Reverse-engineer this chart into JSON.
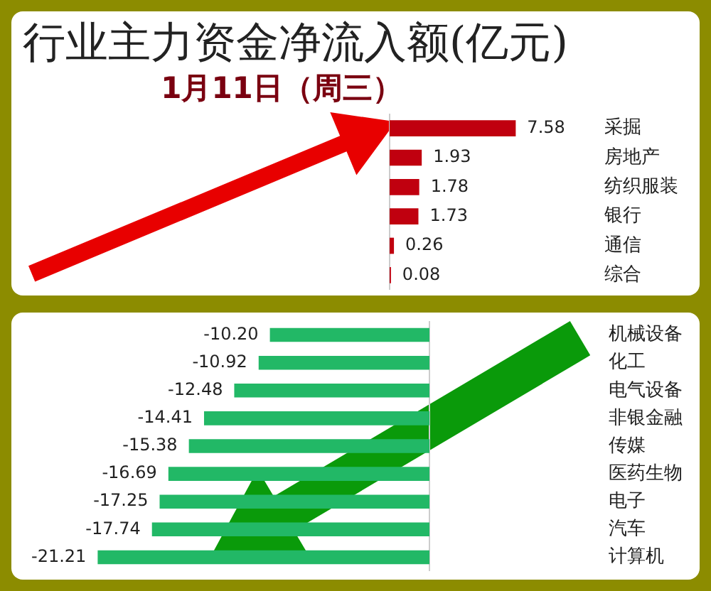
{
  "chart_data": [
    {
      "type": "bar",
      "title": "行业主力资金净流入额(亿元)",
      "subtitle": "1月11日（周三）",
      "orientation": "horizontal",
      "categories": [
        "采掘",
        "房地产",
        "纺织服装",
        "银行",
        "通信",
        "综合"
      ],
      "series": [
        {
          "color": "#c0000f",
          "values": [
            7.58,
            1.93,
            1.78,
            1.73,
            0.26,
            0.08
          ],
          "value_labels": [
            "7.58",
            "1.93",
            "1.78",
            "1.73",
            "0.26",
            "0.08"
          ]
        }
      ],
      "tick_labels": "y",
      "legend": false,
      "ref_lines": [
        {
          "axis": "x",
          "value": 0,
          "color": "#cccccc"
        }
      ]
    },
    {
      "type": "bar",
      "orientation": "horizontal",
      "categories": [
        "机械设备",
        "化工",
        "电气设备",
        "非银金融",
        "传媒",
        "医药生物",
        "电子",
        "汽车",
        "计算机"
      ],
      "series": [
        {
          "color": "#22b866",
          "values": [
            -10.2,
            -10.92,
            -12.48,
            -14.41,
            -15.38,
            -16.69,
            -17.25,
            -17.74,
            -21.21
          ],
          "value_labels": [
            "-10.20",
            "-10.92",
            "-12.48",
            "-14.41",
            "-15.38",
            "-16.69",
            "-17.25",
            "-17.74",
            "-21.21"
          ]
        }
      ],
      "tick_labels": "y",
      "legend": false,
      "ref_lines": [
        {
          "axis": "x",
          "value": 0,
          "color": "#cccccc"
        }
      ]
    }
  ]
}
